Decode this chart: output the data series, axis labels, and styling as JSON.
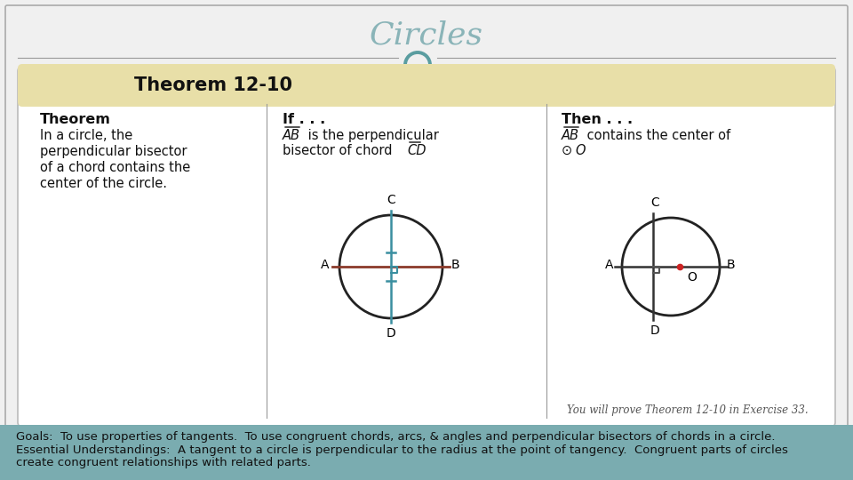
{
  "title": "Circles",
  "title_color": "#8ab4b8",
  "title_fontsize": 26,
  "bg_color": "#f0f0f0",
  "header_bg": "#e8dfa8",
  "header_text": "Theorem 12-10",
  "header_fontsize": 15,
  "card_bg": "#ffffff",
  "card_border": "#bbbbbb",
  "theorem_title": "Theorem",
  "theorem_body": "In a circle, the\nperpendicular bisector\nof a chord contains the\ncenter of the circle.",
  "if_title": "If . . .",
  "then_title": "Then . . .",
  "footnote": "You will prove Theorem 12-10 in Exercise 33.",
  "goals_bg": "#7aacb0",
  "goals_line1": "Goals:  To use properties of tangents.  To use congruent chords, arcs, & angles and perpendicular bisectors of chords in a circle.",
  "goals_line2": "Essential Understandings:  A tangent to a circle is perpendicular to the radius at the point of tangency.  Congruent parts of circles",
  "goals_line3": "create congruent relationships with related parts.",
  "goals_fontsize": 9.5,
  "circle_color": "#222222",
  "chord_color": "#8B3A2A",
  "bisector_color": "#3a8fa0",
  "right_angle_color": "#3a8fa0",
  "center_color": "#cc2222",
  "label_fontsize": 10,
  "divider_color": "#999999",
  "header_text_color": "#111111",
  "circle_icon_color": "#5a9da0",
  "outer_border_color": "#aaaaaa"
}
